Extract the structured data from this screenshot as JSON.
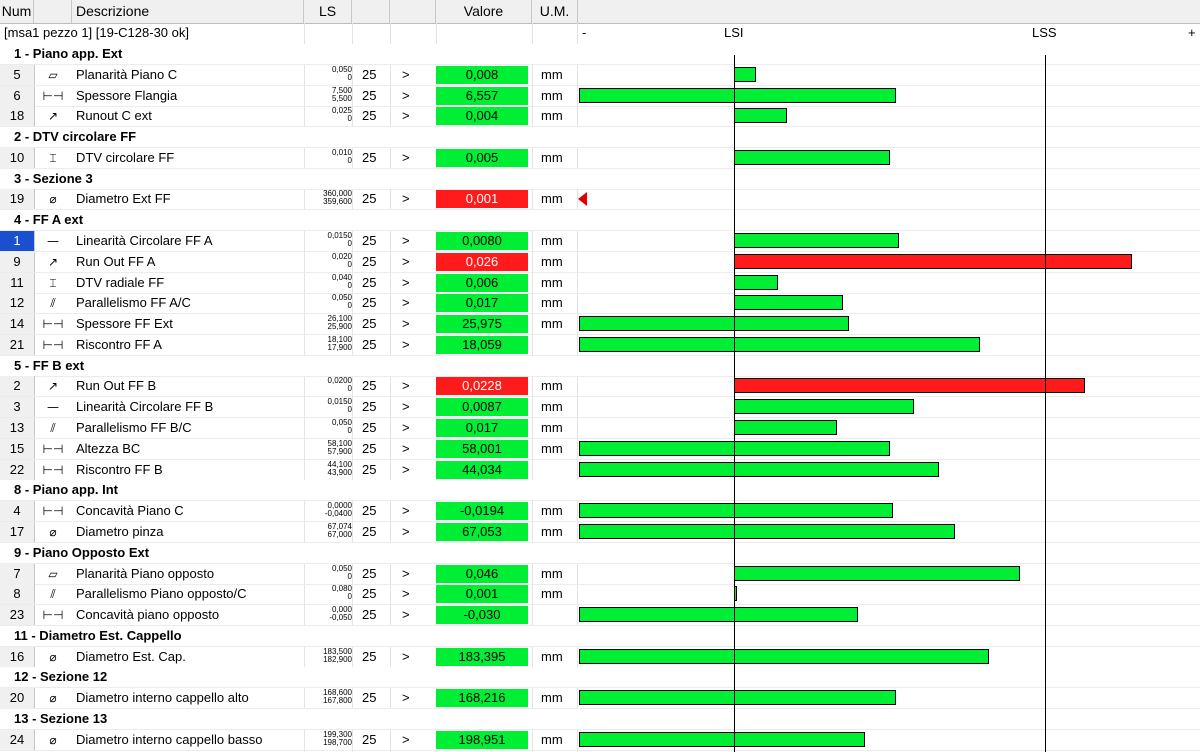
{
  "header": {
    "num": "Num",
    "descrizione": "Descrizione",
    "ls": "LS",
    "valore": "Valore",
    "um": "U.M."
  },
  "piece_label": "[msa1 pezzo 1] [19-C128-30 ok]",
  "scale": {
    "minus": "-",
    "lsi": "LSI",
    "lss": "LSS",
    "plus": "+"
  },
  "colors": {
    "ok": "#00ee33",
    "ko": "#ff1b1b",
    "selected": "#1a4fcf"
  },
  "rows": [
    {
      "type": "group",
      "title": "1 - Piano app. Ext"
    },
    {
      "type": "item",
      "num": "5",
      "icon": "flatness-icon",
      "glyph": "⏥",
      "desc": "Planarità Piano C",
      "ls_hi": "0,050",
      "ls_lo": "0",
      "n": "25",
      "cmp": ">",
      "value": "0,008",
      "status": "ok",
      "um": "mm",
      "bar": {
        "from": 0.0,
        "to": 0.07
      }
    },
    {
      "type": "item",
      "num": "6",
      "icon": "thickness-icon",
      "glyph": "⊢⊣",
      "desc": "Spessore Flangia",
      "ls_hi": "7,500",
      "ls_lo": "5,500",
      "n": "25",
      "cmp": ">",
      "value": "6,557",
      "status": "ok",
      "um": "mm",
      "bar": {
        "from": -0.5,
        "to": 0.52
      }
    },
    {
      "type": "item",
      "num": "18",
      "icon": "runout-icon",
      "glyph": "↗",
      "desc": "Runout C ext",
      "ls_hi": "0,025",
      "ls_lo": "0",
      "n": "25",
      "cmp": ">",
      "value": "0,004",
      "status": "ok",
      "um": "mm",
      "bar": {
        "from": 0.0,
        "to": 0.17
      }
    },
    {
      "type": "group",
      "title": "2 - DTV circolare FF"
    },
    {
      "type": "item",
      "num": "10",
      "icon": "dtv-icon",
      "glyph": "⌶",
      "desc": "DTV circolare FF",
      "ls_hi": "0,010",
      "ls_lo": "0",
      "n": "25",
      "cmp": ">",
      "value": "0,005",
      "status": "ok",
      "um": "mm",
      "bar": {
        "from": 0.0,
        "to": 0.5
      }
    },
    {
      "type": "group",
      "title": "3 - Sezione 3"
    },
    {
      "type": "item",
      "num": "19",
      "icon": "diameter-icon",
      "glyph": "⌀",
      "desc": "Diametro Ext FF",
      "ls_hi": "360,000",
      "ls_lo": "359,600",
      "n": "25",
      "cmp": ">",
      "value": "0,001",
      "status": "ko",
      "um": "mm",
      "bar": null,
      "arrow": "left"
    },
    {
      "type": "group",
      "title": "4 - FF A ext"
    },
    {
      "type": "item",
      "num": "1",
      "selected": true,
      "icon": "straightness-icon",
      "glyph": "—",
      "desc": "Linearità Circolare FF  A",
      "ls_hi": "0,0150",
      "ls_lo": "0",
      "n": "25",
      "cmp": ">",
      "value": "0,0080",
      "status": "ok",
      "um": "mm",
      "bar": {
        "from": 0.0,
        "to": 0.53
      }
    },
    {
      "type": "item",
      "num": "9",
      "icon": "runout-icon",
      "glyph": "↗",
      "desc": "Run Out FF A",
      "ls_hi": "0,020",
      "ls_lo": "0",
      "n": "25",
      "cmp": ">",
      "value": "0,026",
      "status": "ko",
      "um": "mm",
      "bar": {
        "from": 0.0,
        "to": 1.28
      }
    },
    {
      "type": "item",
      "num": "11",
      "icon": "dtv-icon",
      "glyph": "⌶",
      "desc": "DTV radiale FF",
      "ls_hi": "0,040",
      "ls_lo": "0",
      "n": "25",
      "cmp": ">",
      "value": "0,006",
      "status": "ok",
      "um": "mm",
      "bar": {
        "from": 0.0,
        "to": 0.14
      }
    },
    {
      "type": "item",
      "num": "12",
      "icon": "parallelism-icon",
      "glyph": "⫽",
      "desc": "Parallelismo FF A/C",
      "ls_hi": "0,050",
      "ls_lo": "0",
      "n": "25",
      "cmp": ">",
      "value": "0,017",
      "status": "ok",
      "um": "mm",
      "bar": {
        "from": 0.0,
        "to": 0.35
      }
    },
    {
      "type": "item",
      "num": "14",
      "icon": "thickness-icon",
      "glyph": "⊢⊣",
      "desc": "Spessore FF Ext",
      "ls_hi": "26,100",
      "ls_lo": "25,900",
      "n": "25",
      "cmp": ">",
      "value": "25,975",
      "status": "ok",
      "um": "mm",
      "bar": {
        "from": -0.5,
        "to": 0.37
      }
    },
    {
      "type": "item",
      "num": "21",
      "icon": "thickness-icon",
      "glyph": "⊢⊣",
      "desc": "Riscontro FF A",
      "ls_hi": "18,100",
      "ls_lo": "17,900",
      "n": "25",
      "cmp": ">",
      "value": "18,059",
      "status": "ok",
      "um": "",
      "bar": {
        "from": -0.5,
        "to": 0.79
      }
    },
    {
      "type": "group",
      "title": "5 - FF B ext"
    },
    {
      "type": "item",
      "num": "2",
      "icon": "runout-icon",
      "glyph": "↗",
      "desc": "Run Out FF B",
      "ls_hi": "0,0200",
      "ls_lo": "0",
      "n": "25",
      "cmp": ">",
      "value": "0,0228",
      "status": "ko",
      "um": "mm",
      "bar": {
        "from": 0.0,
        "to": 1.13
      }
    },
    {
      "type": "item",
      "num": "3",
      "icon": "straightness-icon",
      "glyph": "—",
      "desc": "Linearità Circolare FF B",
      "ls_hi": "0,0150",
      "ls_lo": "0",
      "n": "25",
      "cmp": ">",
      "value": "0,0087",
      "status": "ok",
      "um": "mm",
      "bar": {
        "from": 0.0,
        "to": 0.58
      }
    },
    {
      "type": "item",
      "num": "13",
      "icon": "parallelism-icon",
      "glyph": "⫽",
      "desc": "Parallelismo FF B/C",
      "ls_hi": "0,050",
      "ls_lo": "0",
      "n": "25",
      "cmp": ">",
      "value": "0,017",
      "status": "ok",
      "um": "mm",
      "bar": {
        "from": 0.0,
        "to": 0.33
      }
    },
    {
      "type": "item",
      "num": "15",
      "icon": "thickness-icon",
      "glyph": "⊢⊣",
      "desc": "Altezza BC",
      "ls_hi": "58,100",
      "ls_lo": "57,900",
      "n": "25",
      "cmp": ">",
      "value": "58,001",
      "status": "ok",
      "um": "mm",
      "bar": {
        "from": -0.5,
        "to": 0.5
      }
    },
    {
      "type": "item",
      "num": "22",
      "icon": "thickness-icon",
      "glyph": "⊢⊣",
      "desc": "Riscontro FF B",
      "ls_hi": "44,100",
      "ls_lo": "43,900",
      "n": "25",
      "cmp": ">",
      "value": "44,034",
      "status": "ok",
      "um": "",
      "bar": {
        "from": -0.5,
        "to": 0.66
      }
    },
    {
      "type": "group",
      "title": "8 - Piano app. Int"
    },
    {
      "type": "item",
      "num": "4",
      "icon": "thickness-icon",
      "glyph": "⊢⊣",
      "desc": "Concavità  Piano C",
      "ls_hi": "0,0000",
      "ls_lo": "-0,0400",
      "n": "25",
      "cmp": ">",
      "value": "-0,0194",
      "status": "ok",
      "um": "mm",
      "bar": {
        "from": -0.5,
        "to": 0.51
      }
    },
    {
      "type": "item",
      "num": "17",
      "icon": "diameter-icon",
      "glyph": "⌀",
      "desc": "Diametro pinza",
      "ls_hi": "67,074",
      "ls_lo": "67,000",
      "n": "25",
      "cmp": ">",
      "value": "67,053",
      "status": "ok",
      "um": "mm",
      "bar": {
        "from": -0.5,
        "to": 0.71
      }
    },
    {
      "type": "group",
      "title": "9 - Piano Opposto Ext"
    },
    {
      "type": "item",
      "num": "7",
      "icon": "flatness-icon",
      "glyph": "⏥",
      "desc": "Planarità Piano opposto",
      "ls_hi": "0,050",
      "ls_lo": "0",
      "n": "25",
      "cmp": ">",
      "value": "0,046",
      "status": "ok",
      "um": "mm",
      "bar": {
        "from": 0.0,
        "to": 0.92
      }
    },
    {
      "type": "item",
      "num": "8",
      "icon": "parallelism-icon",
      "glyph": "⫽",
      "desc": "Parallelismo Piano opposto/C",
      "ls_hi": "0,080",
      "ls_lo": "0",
      "n": "25",
      "cmp": ">",
      "value": "0,001",
      "status": "ok",
      "um": "mm",
      "bar": {
        "from": 0.0,
        "to": 0.01
      }
    },
    {
      "type": "item",
      "num": "23",
      "icon": "thickness-icon",
      "glyph": "⊢⊣",
      "desc": "Concavità piano opposto",
      "ls_hi": "0,000",
      "ls_lo": "-0,050",
      "n": "25",
      "cmp": ">",
      "value": "-0,030",
      "status": "ok",
      "um": "",
      "bar": {
        "from": -0.5,
        "to": 0.4
      }
    },
    {
      "type": "group",
      "title": "11 - Diametro Est. Cappello"
    },
    {
      "type": "item",
      "num": "16",
      "icon": "diameter-icon",
      "glyph": "⌀",
      "desc": "Diametro Est. Cap.",
      "ls_hi": "183,500",
      "ls_lo": "182,900",
      "n": "25",
      "cmp": ">",
      "value": "183,395",
      "status": "ok",
      "um": "mm",
      "bar": {
        "from": -0.5,
        "to": 0.82
      }
    },
    {
      "type": "group",
      "title": "12 - Sezione 12"
    },
    {
      "type": "item",
      "num": "20",
      "icon": "diameter-icon",
      "glyph": "⌀",
      "desc": "Diametro interno cappello alto",
      "ls_hi": "168,600",
      "ls_lo": "167,800",
      "n": "25",
      "cmp": ">",
      "value": "168,216",
      "status": "ok",
      "um": "mm",
      "bar": {
        "from": -0.5,
        "to": 0.52
      }
    },
    {
      "type": "group",
      "title": "13 - Sezione 13"
    },
    {
      "type": "item",
      "num": "24",
      "icon": "diameter-icon",
      "glyph": "⌀",
      "desc": "Diametro interno cappello basso",
      "ls_hi": "199,300",
      "ls_lo": "198,700",
      "n": "25",
      "cmp": ">",
      "value": "198,951",
      "status": "ok",
      "um": "mm",
      "bar": {
        "from": -0.5,
        "to": 0.42
      }
    }
  ]
}
